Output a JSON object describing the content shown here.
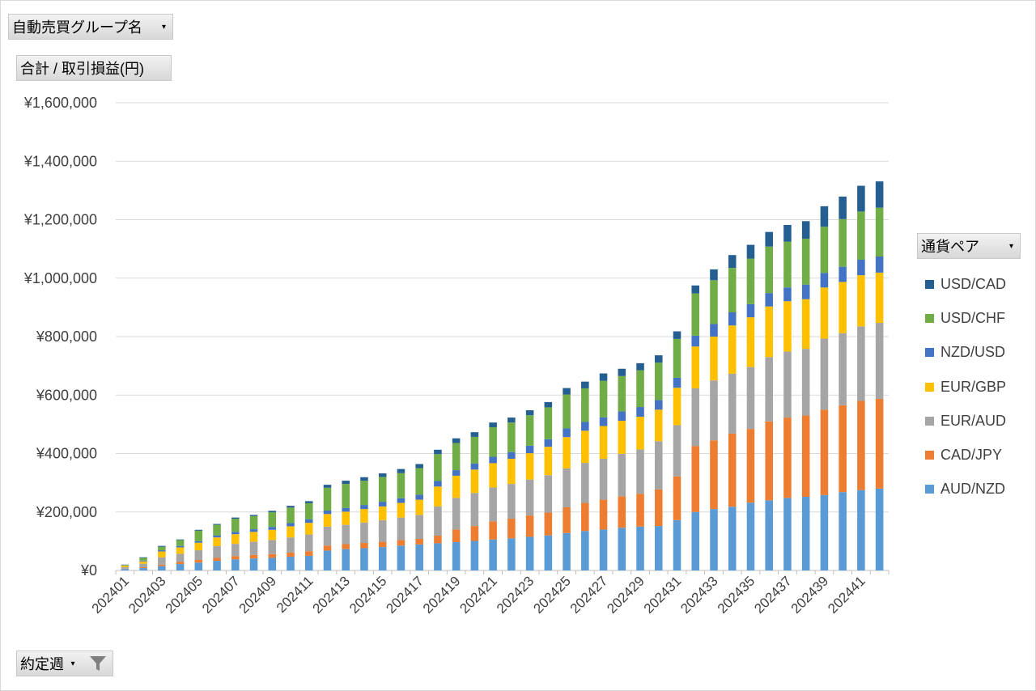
{
  "filters": {
    "group_label": "自動売買グループ名",
    "value_label": "合計 / 取引損益(円)",
    "series_label": "通貨ペア",
    "week_label": "約定週"
  },
  "icons": {
    "dropdown": "dropdown-arrow-icon",
    "filter": "filter-icon"
  },
  "chart_data": {
    "type": "bar",
    "stacked": true,
    "title": "",
    "xlabel": "",
    "ylabel": "",
    "ylim": [
      0,
      1600000
    ],
    "y_ticks": [
      0,
      200000,
      400000,
      600000,
      800000,
      1000000,
      1200000,
      1400000,
      1600000
    ],
    "y_tick_labels": [
      "¥0",
      "¥200,000",
      "¥400,000",
      "¥600,000",
      "¥800,000",
      "¥1,000,000",
      "¥1,200,000",
      "¥1,400,000",
      "¥1,600,000"
    ],
    "grid": true,
    "legend_position": "right",
    "categories": [
      "202401",
      "202402",
      "202403",
      "202404",
      "202405",
      "202406",
      "202407",
      "202408",
      "202409",
      "202410",
      "202411",
      "202412",
      "202413",
      "202414",
      "202415",
      "202416",
      "202417",
      "202418",
      "202419",
      "202420",
      "202421",
      "202422",
      "202423",
      "202424",
      "202425",
      "202426",
      "202427",
      "202428",
      "202429",
      "202430",
      "202431",
      "202432",
      "202433",
      "202434",
      "202435",
      "202436",
      "202437",
      "202438",
      "202439",
      "202440",
      "202441",
      "202442"
    ],
    "x_tick_labels": [
      "202401",
      "202403",
      "202405",
      "202407",
      "202409",
      "202411",
      "202413",
      "202415",
      "202417",
      "202419",
      "202421",
      "202423",
      "202425",
      "202427",
      "202429",
      "202431",
      "202433",
      "202435",
      "202437",
      "202439",
      "202441"
    ],
    "series": [
      {
        "name": "AUD/NZD",
        "color": "#5B9BD5",
        "values": [
          5000,
          8000,
          15000,
          22000,
          27000,
          33000,
          38000,
          41000,
          43000,
          47000,
          50000,
          68000,
          73000,
          76000,
          80000,
          85000,
          89000,
          93000,
          97000,
          101000,
          106000,
          110000,
          115000,
          120000,
          128000,
          135000,
          140000,
          146000,
          150000,
          152000,
          172000,
          200000,
          210000,
          218000,
          232000,
          240000,
          248000,
          252000,
          258000,
          268000,
          275000,
          280000
        ]
      },
      {
        "name": "CAD/JPY",
        "color": "#ED7D31",
        "values": [
          1000,
          3000,
          5000,
          7000,
          9000,
          10000,
          11000,
          12000,
          13000,
          14000,
          16000,
          17000,
          17000,
          18000,
          18000,
          19000,
          19000,
          26000,
          43000,
          51000,
          62000,
          67000,
          73000,
          78000,
          88000,
          96000,
          102000,
          108000,
          112000,
          125000,
          150000,
          225000,
          235000,
          250000,
          252000,
          270000,
          275000,
          278000,
          292000,
          297000,
          305000,
          307000
        ]
      },
      {
        "name": "EUR/AUD",
        "color": "#A5A5A5",
        "values": [
          5000,
          12000,
          25000,
          28000,
          33000,
          40000,
          42000,
          45000,
          48000,
          52000,
          57000,
          65000,
          66000,
          70000,
          74000,
          77000,
          82000,
          100000,
          108000,
          113000,
          116000,
          119000,
          123000,
          128000,
          133000,
          137000,
          140000,
          145000,
          152000,
          165000,
          175000,
          198000,
          205000,
          205000,
          212000,
          220000,
          226000,
          228000,
          243000,
          247000,
          255000,
          260000
        ]
      },
      {
        "name": "EUR/GBP",
        "color": "#FFC000",
        "values": [
          5000,
          8000,
          20000,
          22000,
          26000,
          30000,
          33000,
          34000,
          35000,
          38000,
          40000,
          43000,
          45000,
          46000,
          47000,
          50000,
          52000,
          68000,
          76000,
          80000,
          83000,
          86000,
          90000,
          97000,
          107000,
          110000,
          112000,
          113000,
          112000,
          108000,
          128000,
          143000,
          150000,
          165000,
          170000,
          173000,
          172000,
          170000,
          175000,
          175000,
          175000,
          172000
        ]
      },
      {
        "name": "NZD/USD",
        "color": "#4472C4",
        "values": [
          1000,
          3000,
          4000,
          5000,
          5000,
          7000,
          8000,
          9000,
          10000,
          11000,
          12000,
          12000,
          13000,
          14000,
          16000,
          16000,
          17000,
          19000,
          19000,
          21000,
          22000,
          23000,
          26000,
          26000,
          30000,
          30000,
          30000,
          32000,
          33000,
          33000,
          34000,
          37000,
          43000,
          45000,
          45000,
          46000,
          47000,
          50000,
          50000,
          52000,
          53000,
          55000
        ]
      },
      {
        "name": "USD/CHF",
        "color": "#70AD47",
        "values": [
          2000,
          9000,
          12000,
          20000,
          36000,
          36000,
          45000,
          45000,
          50000,
          53000,
          55000,
          78000,
          82000,
          83000,
          85000,
          86000,
          91000,
          92000,
          93000,
          91000,
          101000,
          101000,
          104000,
          109000,
          116000,
          115000,
          125000,
          121000,
          126000,
          128000,
          133000,
          145000,
          150000,
          152000,
          156000,
          159000,
          157000,
          157000,
          158000,
          163000,
          165000,
          167000
        ]
      },
      {
        "name": "USD/CAD",
        "color": "#255E91",
        "values": [
          1000,
          2000,
          3000,
          2000,
          3000,
          3000,
          4000,
          4000,
          5000,
          6000,
          7000,
          10000,
          11000,
          12000,
          12000,
          14000,
          14000,
          15000,
          16000,
          16000,
          16000,
          17000,
          17000,
          18000,
          22000,
          23000,
          25000,
          25000,
          24000,
          25000,
          26000,
          27000,
          37000,
          44000,
          47000,
          50000,
          57000,
          60000,
          70000,
          77000,
          88000,
          90000
        ]
      }
    ]
  }
}
